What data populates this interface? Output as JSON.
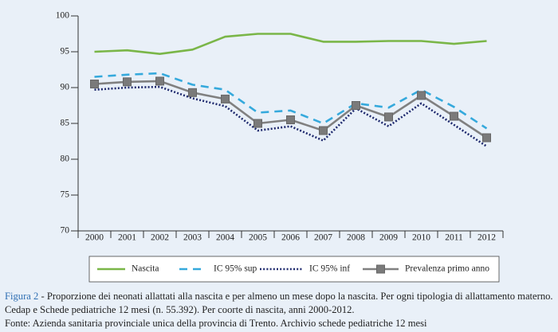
{
  "chart_data": {
    "type": "line",
    "categories": [
      "2000",
      "2001",
      "2002",
      "2003",
      "2004",
      "2005",
      "2006",
      "2007",
      "2008",
      "2009",
      "2010",
      "2011",
      "2012"
    ],
    "series": [
      {
        "name": "Nascita",
        "color": "#7ab648",
        "line_style": "solid",
        "values": [
          95.0,
          95.2,
          94.7,
          95.3,
          97.1,
          97.5,
          97.5,
          96.4,
          96.4,
          96.5,
          96.5,
          96.1,
          96.5
        ]
      },
      {
        "name": "IC 95% sup",
        "color": "#35a9dc",
        "line_style": "dashed",
        "values": [
          91.5,
          91.8,
          92.0,
          90.4,
          89.7,
          86.5,
          86.8,
          85.0,
          87.8,
          87.2,
          89.7,
          87.3,
          84.3
        ]
      },
      {
        "name": "IC 95% inf",
        "color": "#1f2a6e",
        "line_style": "dotted",
        "values": [
          89.7,
          90.0,
          90.1,
          88.5,
          87.4,
          84.0,
          84.6,
          82.6,
          87.1,
          84.6,
          87.8,
          84.8,
          81.8
        ]
      },
      {
        "name": "Prevalenza primo anno",
        "color": "#808080",
        "line_style": "solid",
        "marker": "square",
        "values": [
          90.5,
          90.8,
          90.9,
          89.3,
          88.4,
          85.0,
          85.5,
          84.0,
          87.5,
          85.9,
          88.9,
          86.0,
          83.0
        ]
      }
    ],
    "ylim": [
      70,
      100
    ],
    "yticks": [
      70,
      75,
      80,
      85,
      90,
      95,
      100
    ],
    "grid": false,
    "legend": "bottom"
  },
  "caption": {
    "label": "Figura 2",
    "text": "- Proporzione dei neonati allattati alla nascita e per almeno un mese dopo la nascita. Per ogni tipologia di allattamento materno. Cedap e Schede pediatriche 12 mesi (n. 55.392). Per coorte di nascita, anni 2000-2012.",
    "source": "Fonte: Azienda sanitaria provinciale unica della provincia di Trento. Archivio schede pediatriche 12 mesi"
  }
}
